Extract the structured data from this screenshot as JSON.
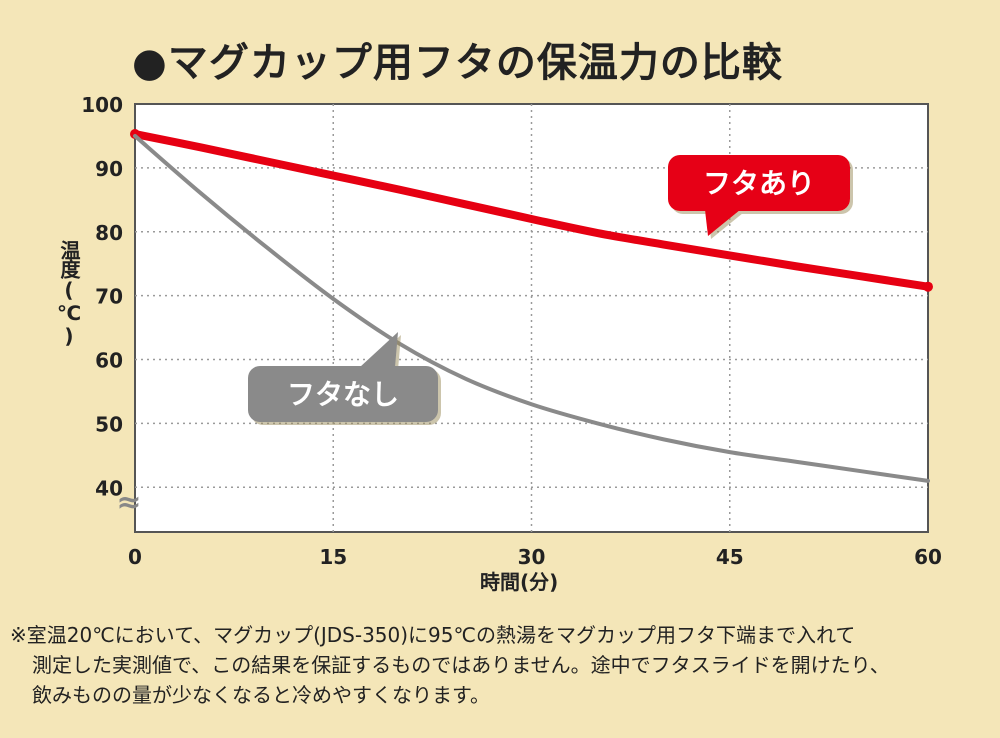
{
  "chart_data": {
    "type": "line",
    "title": "●マグカップ用フタの保温力の比較",
    "xlabel": "時間(分)",
    "ylabel": "温度(℃)",
    "xlim": [
      0,
      60
    ],
    "ylim": [
      33,
      100
    ],
    "x_ticks": [
      "0",
      "15",
      "30",
      "45",
      "60"
    ],
    "y_ticks": [
      "100",
      "90",
      "80",
      "70",
      "60",
      "50",
      "40"
    ],
    "axis_break_symbol": "≈",
    "grid": true,
    "series": [
      {
        "name": "フタあり",
        "color": "#e60012",
        "x": [
          0,
          5,
          10,
          15,
          20,
          25,
          30,
          35,
          40,
          45,
          50,
          55,
          60
        ],
        "y": [
          95.3,
          93.2,
          91.0,
          88.8,
          86.6,
          84.3,
          82.0,
          79.8,
          78.0,
          76.3,
          74.6,
          73.0,
          71.4
        ]
      },
      {
        "name": "フタなし",
        "color": "#8a8a8a",
        "x": [
          0,
          5,
          10,
          15,
          20,
          25,
          30,
          35,
          40,
          45,
          50,
          55,
          60
        ],
        "y": [
          95.0,
          86.0,
          77.5,
          69.5,
          62.5,
          57.0,
          53.0,
          50.0,
          47.5,
          45.5,
          44.0,
          42.5,
          41.0
        ]
      }
    ],
    "annotations": [
      {
        "text": "フタあり",
        "series": "フタあり"
      },
      {
        "text": "フタなし",
        "series": "フタなし"
      }
    ]
  },
  "note": {
    "line1": "※室温20℃において、マグカップ(JDS-350)に95℃の熱湯をマグカップ用フタ下端まで入れて",
    "line2": "測定した実測値で、この結果を保証するものではありません。途中でフタスライドを開けたり、",
    "line3": "飲みものの量が少なくなると冷めやすくなります。"
  }
}
